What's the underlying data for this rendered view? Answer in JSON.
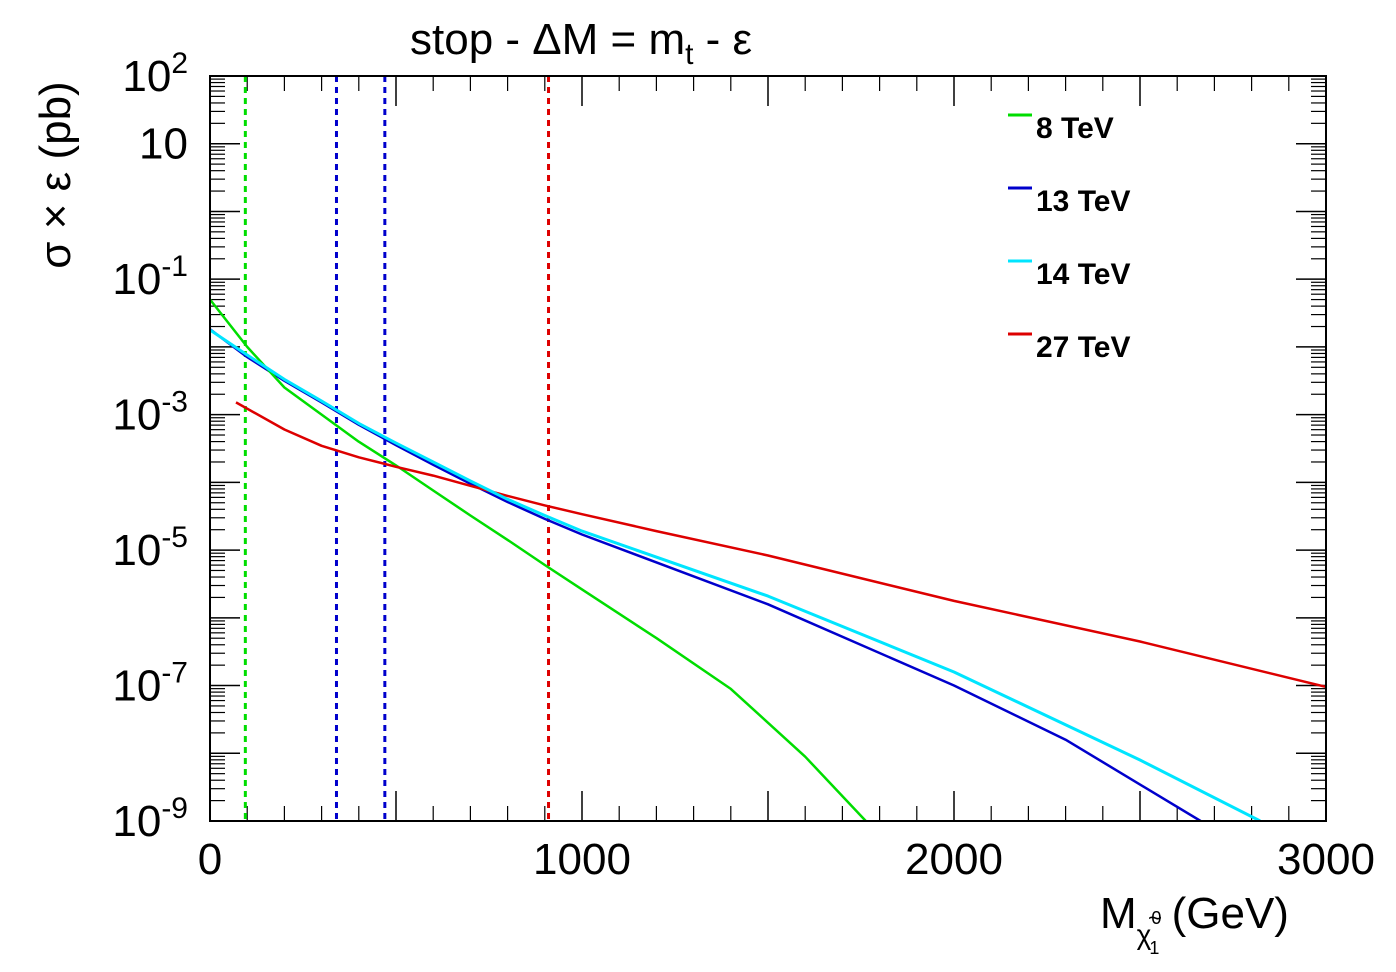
{
  "chart_data": {
    "type": "line",
    "title": "stop - ΔM = m",
    "title_sub": "t",
    "title_tail": " - ε",
    "xlabel": "M",
    "xlabel_sub_tilde": "χ",
    "xlabel_sub_sup": "0",
    "xlabel_sub_sub": "1",
    "xlabel_unit": " (GeV)",
    "ylabel": "σ × ε (pb)",
    "xlim": [
      0,
      3000
    ],
    "ylim_log10": [
      -9,
      2
    ],
    "y_scale": "log",
    "x_ticks": [
      {
        "value": 0,
        "label": "0"
      },
      {
        "value": 1000,
        "label": "1000"
      },
      {
        "value": 2000,
        "label": "2000"
      },
      {
        "value": 3000,
        "label": "3000"
      }
    ],
    "y_ticks": [
      {
        "exp": 2,
        "base": "10",
        "sup": "2"
      },
      {
        "exp": 1,
        "base": "10",
        "sup": ""
      },
      {
        "exp": -1,
        "base": "10",
        "sup": "-1"
      },
      {
        "exp": -3,
        "base": "10",
        "sup": "-3"
      },
      {
        "exp": -5,
        "base": "10",
        "sup": "-5"
      },
      {
        "exp": -7,
        "base": "10",
        "sup": "-7"
      },
      {
        "exp": -9,
        "base": "10",
        "sup": "-9"
      }
    ],
    "series": [
      {
        "name": "8 TeV",
        "color": "#00dd00",
        "x": [
          0,
          100,
          200,
          300,
          400,
          500,
          600,
          700,
          800,
          900,
          1000,
          1200,
          1400,
          1600,
          1763
        ],
        "log10y": [
          -1.3,
          -2.0,
          -2.6,
          -3.0,
          -3.4,
          -3.75,
          -4.12,
          -4.49,
          -4.85,
          -5.22,
          -5.58,
          -6.3,
          -7.05,
          -8.05,
          -9.0
        ]
      },
      {
        "name": "13 TeV",
        "color": "#0000cc",
        "x": [
          0,
          100,
          200,
          300,
          400,
          500,
          600,
          700,
          800,
          900,
          1000,
          1500,
          2000,
          2300,
          2663
        ],
        "log10y": [
          -1.74,
          -2.15,
          -2.5,
          -2.82,
          -3.15,
          -3.45,
          -3.74,
          -4.02,
          -4.29,
          -4.54,
          -4.77,
          -5.8,
          -7.0,
          -7.8,
          -9.0
        ]
      },
      {
        "name": "14 TeV",
        "color": "#00e5ff",
        "x": [
          0,
          100,
          200,
          300,
          400,
          500,
          600,
          700,
          800,
          900,
          1000,
          1500,
          2000,
          2500,
          2823
        ],
        "log10y": [
          -1.75,
          -2.12,
          -2.48,
          -2.8,
          -3.13,
          -3.42,
          -3.7,
          -3.98,
          -4.25,
          -4.49,
          -4.72,
          -5.68,
          -6.8,
          -8.1,
          -9.0
        ]
      },
      {
        "name": "27 TeV",
        "color": "#dd0000",
        "x": [
          70,
          200,
          300,
          400,
          500,
          600,
          700,
          800,
          900,
          1000,
          1200,
          1500,
          2000,
          2500,
          3000
        ],
        "log10y": [
          -2.82,
          -3.22,
          -3.46,
          -3.63,
          -3.77,
          -3.9,
          -4.05,
          -4.2,
          -4.34,
          -4.47,
          -4.72,
          -5.08,
          -5.75,
          -6.35,
          -7.02
        ]
      }
    ],
    "vertical_lines": [
      {
        "x": 95,
        "color": "#00dd00",
        "series": "8 TeV"
      },
      {
        "x": 340,
        "color": "#0000cc",
        "series": "13 TeV"
      },
      {
        "x": 470,
        "color": "#0000cc",
        "series": "13 TeV"
      },
      {
        "x": 910,
        "color": "#dd0000",
        "series": "27 TeV"
      }
    ],
    "legend": {
      "position": "top-right",
      "entries": [
        {
          "label": "8 TeV",
          "color": "#00dd00"
        },
        {
          "label": "13 TeV",
          "color": "#0000cc"
        },
        {
          "label": "14 TeV",
          "color": "#00e5ff"
        },
        {
          "label": "27 TeV",
          "color": "#dd0000"
        }
      ]
    },
    "grid": false
  }
}
